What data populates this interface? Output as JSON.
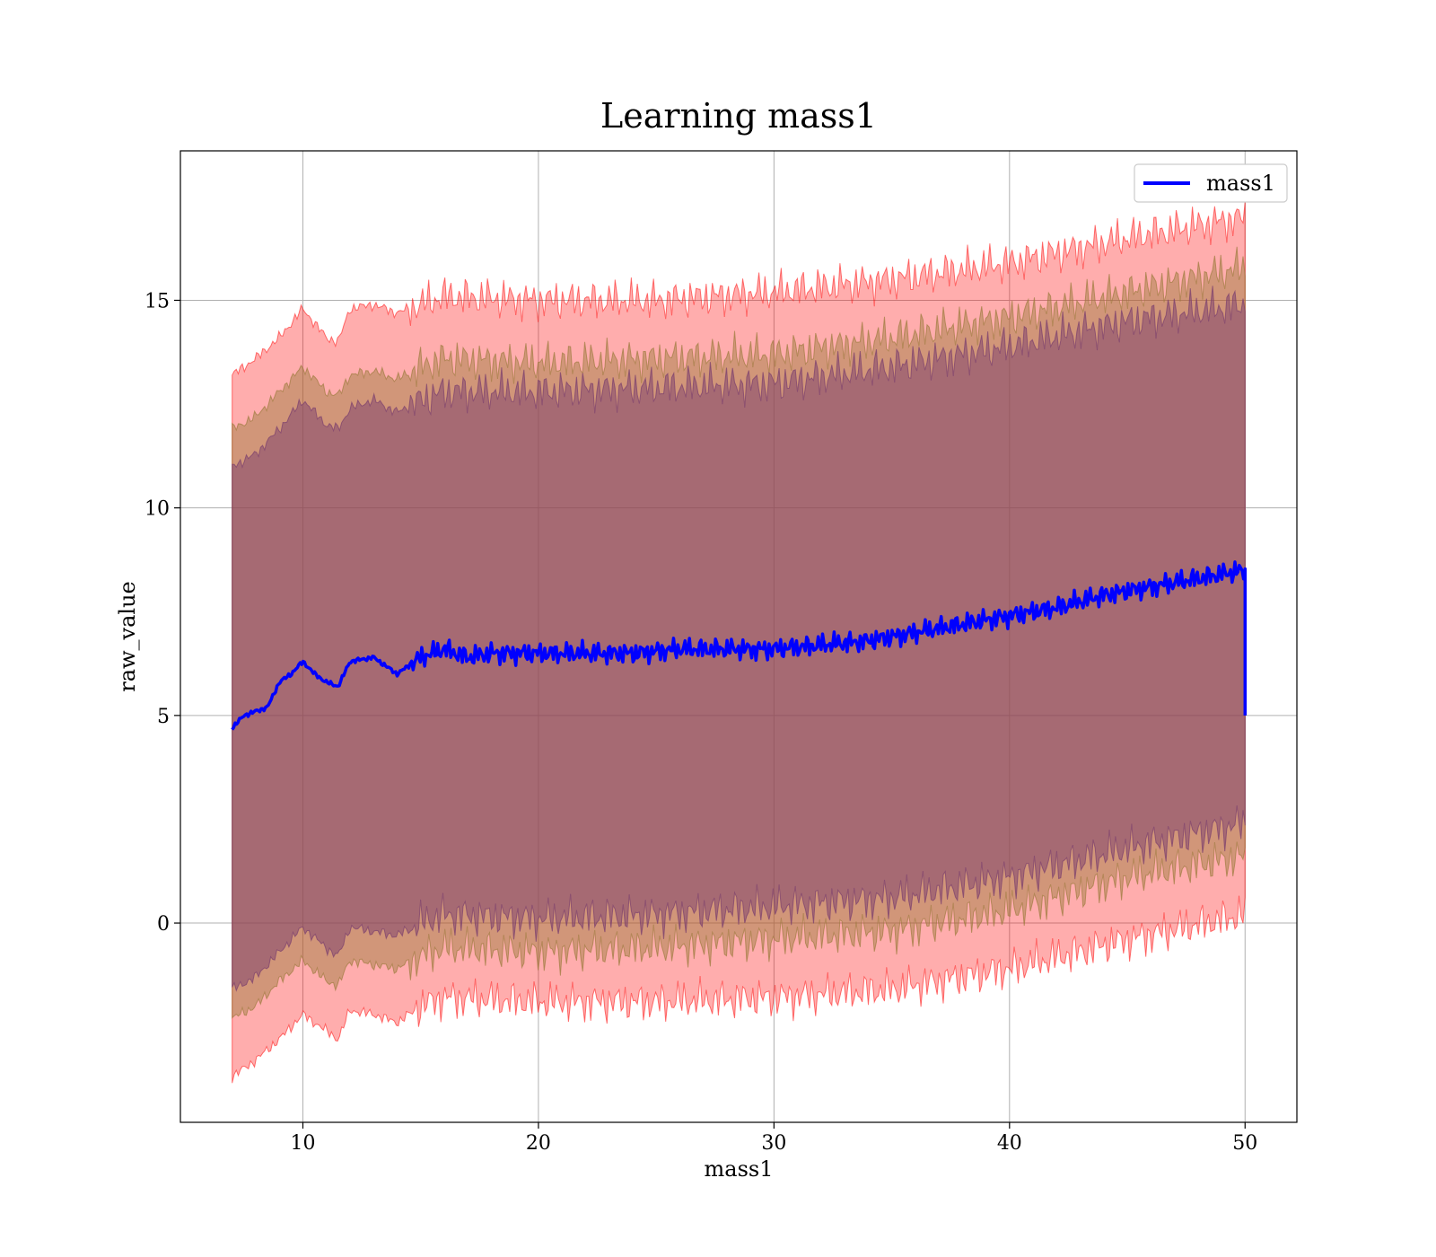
{
  "chart_data": {
    "type": "line",
    "title": "Learning mass1",
    "xlabel": "mass1",
    "ylabel": "raw_value",
    "xlim": [
      4.8,
      52.2
    ],
    "ylim": [
      -4.8,
      18.6
    ],
    "xticks": [
      10,
      20,
      30,
      40,
      50
    ],
    "yticks": [
      0,
      5,
      10,
      15
    ],
    "grid": true,
    "legend_position": "top-right",
    "series": [
      {
        "name": "mass1",
        "color": "#0000ff",
        "x": [
          7.0,
          7.5,
          8.0,
          8.5,
          9.0,
          9.5,
          10.0,
          10.5,
          11.0,
          11.5,
          12.0,
          13.0,
          14.0,
          15.0,
          16.0,
          17.0,
          18.0,
          20.0,
          22.0,
          24.0,
          26.0,
          28.0,
          30.0,
          32.0,
          34.0,
          36.0,
          38.0,
          40.0,
          42.0,
          44.0,
          46.0,
          48.0,
          49.0,
          50.0
        ],
        "values": [
          4.7,
          5.0,
          5.1,
          5.2,
          5.8,
          6.0,
          6.3,
          6.0,
          5.8,
          5.7,
          6.3,
          6.4,
          6.0,
          6.4,
          6.6,
          6.4,
          6.5,
          6.5,
          6.5,
          6.5,
          6.6,
          6.6,
          6.6,
          6.7,
          6.8,
          7.0,
          7.2,
          7.4,
          7.6,
          7.9,
          8.1,
          8.3,
          8.4,
          8.5
        ]
      }
    ],
    "bands": [
      {
        "color": "#ff0000",
        "opacity": 0.32,
        "x": [
          7.0,
          8.0,
          9.0,
          10.0,
          11.0,
          11.5,
          12.0,
          13.0,
          14.0,
          15.0,
          16.0,
          20.0,
          25.0,
          30.0,
          35.0,
          40.0,
          45.0,
          50.0
        ],
        "upper": [
          13.2,
          13.6,
          14.1,
          14.8,
          14.1,
          14.0,
          14.8,
          14.9,
          14.7,
          14.9,
          15.1,
          15.0,
          15.0,
          15.2,
          15.5,
          15.9,
          16.5,
          17.0
        ],
        "lower": [
          -3.7,
          -3.3,
          -2.8,
          -2.2,
          -2.6,
          -2.8,
          -2.1,
          -2.2,
          -2.4,
          -2.0,
          -1.8,
          -1.9,
          -1.9,
          -1.8,
          -1.6,
          -1.1,
          -0.4,
          0.2
        ]
      },
      {
        "color": "#9a7a3a",
        "opacity": 0.45,
        "x": [
          7.0,
          8.0,
          9.0,
          10.0,
          11.0,
          11.5,
          12.0,
          13.0,
          14.0,
          15.0,
          16.0,
          20.0,
          25.0,
          30.0,
          35.0,
          40.0,
          45.0,
          50.0
        ],
        "upper": [
          11.9,
          12.2,
          12.8,
          13.4,
          12.8,
          12.7,
          13.2,
          13.3,
          13.1,
          13.4,
          13.6,
          13.5,
          13.6,
          13.7,
          14.1,
          14.6,
          15.2,
          15.8
        ],
        "lower": [
          -2.3,
          -2.0,
          -1.4,
          -0.9,
          -1.4,
          -1.5,
          -0.9,
          -1.0,
          -1.1,
          -0.8,
          -0.6,
          -0.7,
          -0.6,
          -0.4,
          -0.2,
          0.3,
          1.1,
          1.6
        ]
      },
      {
        "color": "#7b3e6e",
        "opacity": 0.5,
        "x": [
          7.0,
          8.0,
          9.0,
          10.0,
          11.0,
          11.5,
          12.0,
          13.0,
          14.0,
          15.0,
          16.0,
          20.0,
          25.0,
          30.0,
          35.0,
          40.0,
          45.0,
          50.0
        ],
        "upper": [
          11.0,
          11.3,
          11.9,
          12.6,
          12.0,
          11.9,
          12.4,
          12.6,
          12.3,
          12.6,
          12.8,
          12.8,
          12.9,
          13.0,
          13.4,
          13.9,
          14.5,
          14.9
        ],
        "lower": [
          -1.6,
          -1.3,
          -0.7,
          -0.1,
          -0.6,
          -0.8,
          -0.1,
          -0.2,
          -0.3,
          0.0,
          0.2,
          0.1,
          0.2,
          0.4,
          0.6,
          1.1,
          1.8,
          2.4
        ]
      }
    ]
  }
}
